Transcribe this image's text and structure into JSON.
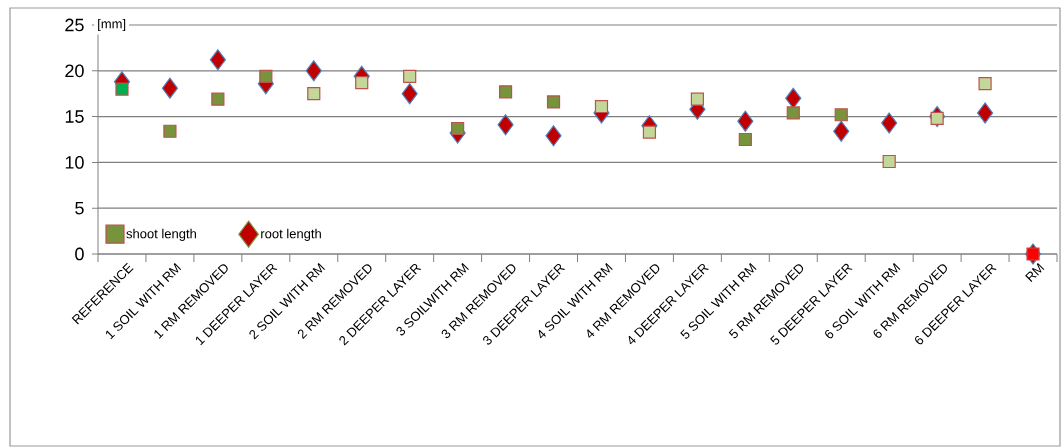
{
  "chart_data": {
    "type": "scatter",
    "ylabel": "[mm]",
    "categories": [
      "REFERENCE",
      "1 SOIL WITH RM",
      "1 RM REMOVED",
      "1 DEEPER LAYER",
      "2 SOIL WITH RM",
      "2 RM REMOVED",
      "2 DEEPER LAYER",
      "3 SOILWITH RM",
      "3 RM REMOVED",
      "3 DEEPER LAYER",
      "4 SOIL  WITH RM",
      "4 RM REMOVED",
      "4 DEEPER LAYER",
      "5 SOIL WITH RM",
      "5 RM REMOVED",
      "5 DEEPER LAYER",
      "6 SOIL WITH RM",
      "6 RM REMOVED",
      "6 DEEPER LAYER",
      "RM"
    ],
    "series": [
      {
        "name": "shoot length",
        "marker": "square",
        "color": "#77933c",
        "values": [
          18.0,
          13.4,
          16.9,
          19.4,
          17.5,
          18.7,
          19.4,
          13.7,
          17.7,
          16.6,
          16.1,
          13.3,
          16.9,
          12.5,
          15.4,
          15.2,
          10.1,
          14.8,
          18.6,
          0
        ],
        "colors": [
          "#00b050",
          "#77933c",
          "#77933c",
          "#77933c",
          "#c4d79b",
          "#c4d79b",
          "#c4d79b",
          "#77933c",
          "#77933c",
          "#77933c",
          "#c4d79b",
          "#c4d79b",
          "#c4d79b",
          "#77933c",
          "#77933c",
          "#77933c",
          "#c4d79b",
          "#c4d79b",
          "#c4d79b",
          "#ff0000"
        ]
      },
      {
        "name": "root length",
        "marker": "diamond",
        "color": "#c00000",
        "values": [
          18.8,
          18.1,
          21.2,
          18.6,
          20.0,
          19.4,
          17.5,
          13.2,
          14.1,
          12.9,
          15.4,
          14.0,
          15.8,
          14.5,
          17.0,
          13.4,
          14.3,
          15.0,
          15.4,
          0
        ]
      }
    ],
    "ylim": [
      0,
      25
    ],
    "yticks": [
      0,
      5,
      10,
      15,
      20,
      25
    ],
    "grid": "y",
    "legend": "bottom left"
  }
}
